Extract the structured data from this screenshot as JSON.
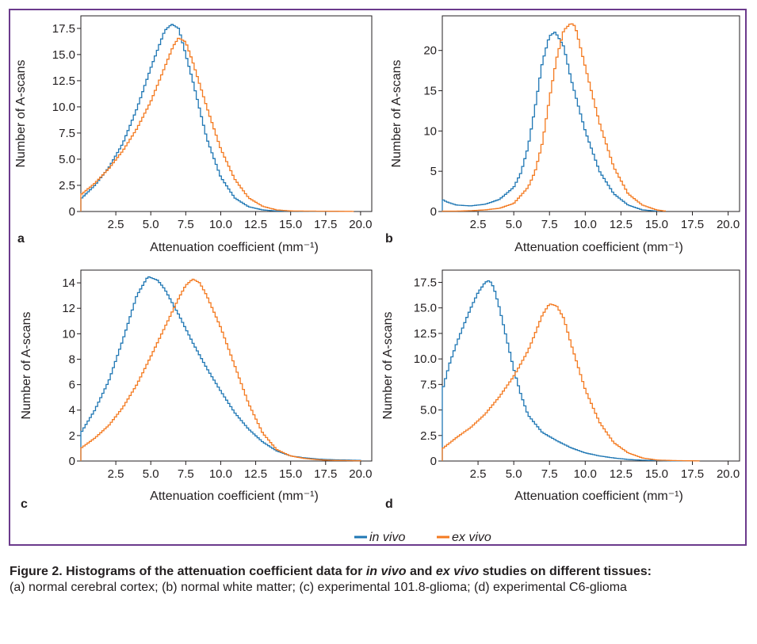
{
  "colors": {
    "in_vivo": "#1f77b4",
    "ex_vivo": "#f47a20",
    "frame": "#6b3a8c",
    "axis": "#231f20"
  },
  "legend": {
    "in_vivo": "in vivo",
    "ex_vivo": "ex vivo",
    "placement": "bottom-center"
  },
  "caption": {
    "title_parts": [
      {
        "text": "Figure 2. Histograms of the attenuation coefficient data for ",
        "italic": false
      },
      {
        "text": "in vivo",
        "italic": true
      },
      {
        "text": " and ",
        "italic": false
      },
      {
        "text": "ex vivo",
        "italic": true
      },
      {
        "text": " studies on different tissues:",
        "italic": false
      }
    ],
    "body": "(a) normal cerebral cortex; (b) normal white matter; (c) experimental 101.8-glioma; (d) experimental C6-glioma"
  },
  "chart_data": [
    {
      "panel": "a",
      "type": "line",
      "step": true,
      "xlabel": "Attenuation coefficient (mm⁻¹)",
      "ylabel": "Number of A-scans",
      "xlim": [
        0,
        20.8
      ],
      "ylim": [
        0,
        18.7
      ],
      "xticks": [
        2.5,
        5.0,
        7.5,
        10.0,
        12.5,
        15.0,
        17.5,
        20.0
      ],
      "xticklabels": [
        "2.5",
        "5.0",
        "7.5",
        "10.0",
        "12.5",
        "15.0",
        "17.5",
        "20.0"
      ],
      "yticks": [
        0,
        2.5,
        5.0,
        7.5,
        10.0,
        12.5,
        15.0,
        17.5
      ],
      "yticklabels": [
        "0",
        "2.5",
        "5.0",
        "7.5",
        "10.0",
        "12.5",
        "15.0",
        "17.5"
      ],
      "series": [
        {
          "name": "in vivo",
          "x": [
            0,
            1,
            2,
            3,
            4,
            5,
            6,
            6.5,
            7,
            8,
            9,
            10,
            11,
            12,
            13,
            14,
            16,
            18.8
          ],
          "y": [
            1.2,
            2.5,
            4.2,
            6.5,
            9.8,
            13.7,
            17.3,
            17.9,
            17.5,
            12.5,
            7.0,
            3.3,
            1.3,
            0.45,
            0.15,
            0.05,
            0.02,
            0.01
          ]
        },
        {
          "name": "ex vivo",
          "x": [
            0,
            1,
            2,
            3,
            4,
            5,
            6,
            6.6,
            7,
            7.5,
            8,
            9,
            10,
            11,
            12,
            13,
            14,
            15,
            19.5
          ],
          "y": [
            1.6,
            2.7,
            4.1,
            5.8,
            7.9,
            10.5,
            13.8,
            15.8,
            16.6,
            16.2,
            14.3,
            10.0,
            6.0,
            3.1,
            1.3,
            0.5,
            0.15,
            0.05,
            0.01
          ]
        }
      ]
    },
    {
      "panel": "b",
      "type": "line",
      "step": true,
      "xlabel": "Attenuation coefficient (mm⁻¹)",
      "ylabel": "Number of A-scans",
      "xlim": [
        0,
        20.8
      ],
      "ylim": [
        0,
        24.3
      ],
      "xticks": [
        2.5,
        5.0,
        7.5,
        10.0,
        12.5,
        15.0,
        17.5,
        20.0
      ],
      "xticklabels": [
        "2.5",
        "5.0",
        "7.5",
        "10.0",
        "12.5",
        "15.0",
        "17.5",
        "20.0"
      ],
      "yticks": [
        0,
        5,
        10,
        15,
        20
      ],
      "yticklabels": [
        "0",
        "5",
        "10",
        "15",
        "20"
      ],
      "series": [
        {
          "name": "in vivo",
          "x": [
            0,
            0.3,
            1,
            2,
            3,
            4,
            5,
            5.5,
            6,
            6.5,
            7,
            7.5,
            7.9,
            8.5,
            9,
            10,
            11,
            12,
            13,
            14,
            15
          ],
          "y": [
            1.5,
            1.2,
            0.8,
            0.7,
            0.9,
            1.5,
            3.0,
            4.8,
            8.0,
            13.0,
            18.5,
            21.8,
            22.3,
            20.5,
            16.5,
            10.0,
            5.0,
            2.2,
            0.8,
            0.2,
            0.05
          ]
        },
        {
          "name": "ex vivo",
          "x": [
            0,
            1,
            2,
            3,
            4,
            5,
            6,
            6.5,
            7,
            7.5,
            8,
            8.5,
            9,
            9.3,
            10,
            11,
            12,
            13,
            14,
            15,
            15.6
          ],
          "y": [
            0.05,
            0.05,
            0.1,
            0.2,
            0.4,
            1.0,
            3.0,
            5.0,
            8.5,
            14.0,
            19.0,
            22.5,
            23.4,
            23.0,
            18.0,
            11.0,
            5.5,
            2.2,
            0.8,
            0.2,
            0.05
          ]
        }
      ]
    },
    {
      "panel": "c",
      "type": "line",
      "step": true,
      "xlabel": "Attenuation coefficient (mm⁻¹)",
      "ylabel": "Number of A-scans",
      "xlim": [
        0,
        20.8
      ],
      "ylim": [
        0,
        15.0
      ],
      "xticks": [
        2.5,
        5.0,
        7.5,
        10.0,
        12.5,
        15.0,
        17.5,
        20.0
      ],
      "xticklabels": [
        "2.5",
        "5.0",
        "7.5",
        "10.0",
        "12.5",
        "15.0",
        "17.5",
        "20.0"
      ],
      "yticks": [
        0,
        2,
        4,
        6,
        8,
        10,
        12,
        14
      ],
      "yticklabels": [
        "0",
        "2",
        "4",
        "6",
        "8",
        "10",
        "12",
        "14"
      ],
      "series": [
        {
          "name": "in vivo",
          "x": [
            0,
            1,
            2,
            3,
            4,
            4.8,
            5.5,
            6,
            7,
            8,
            9,
            10,
            11,
            12,
            13,
            14,
            15,
            16,
            17,
            18,
            20
          ],
          "y": [
            2.2,
            4.0,
            6.3,
            9.5,
            13.0,
            14.5,
            14.2,
            13.5,
            11.5,
            9.3,
            7.3,
            5.5,
            3.8,
            2.5,
            1.5,
            0.8,
            0.4,
            0.25,
            0.15,
            0.1,
            0.05
          ]
        },
        {
          "name": "ex vivo",
          "x": [
            0,
            1,
            2,
            3,
            4,
            5,
            6,
            7,
            7.5,
            8,
            8.5,
            9,
            10,
            11,
            12,
            13,
            14,
            15,
            16,
            17,
            18,
            20
          ],
          "y": [
            1.0,
            1.8,
            2.8,
            4.2,
            6.0,
            8.2,
            10.5,
            12.8,
            13.8,
            14.3,
            14.0,
            13.0,
            10.5,
            7.5,
            4.5,
            2.2,
            0.9,
            0.4,
            0.2,
            0.1,
            0.05,
            0.02
          ]
        }
      ]
    },
    {
      "panel": "d",
      "type": "line",
      "step": true,
      "xlabel": "Attenuation coefficient (mm⁻¹)",
      "ylabel": "Number of A-scans",
      "xlim": [
        0,
        20.8
      ],
      "ylim": [
        0,
        18.7
      ],
      "xticks": [
        2.5,
        5.0,
        7.5,
        10.0,
        12.5,
        15.0,
        17.5,
        20.0
      ],
      "xticklabels": [
        "2.5",
        "5.0",
        "7.5",
        "10.0",
        "12.5",
        "15.0",
        "17.5",
        "20.0"
      ],
      "yticks": [
        0,
        2.5,
        5.0,
        7.5,
        10.0,
        12.5,
        15.0,
        17.5
      ],
      "yticklabels": [
        "0",
        "2.5",
        "5.0",
        "7.5",
        "10.0",
        "12.5",
        "15.0",
        "17.5"
      ],
      "series": [
        {
          "name": "in vivo",
          "x": [
            0,
            0.02,
            0.5,
            1,
            1.5,
            2,
            2.5,
            3,
            3.3,
            3.6,
            4,
            4.5,
            5,
            5.5,
            6,
            7,
            8,
            9,
            10,
            11,
            12,
            13,
            14,
            16,
            18
          ],
          "y": [
            0,
            7.0,
            9.5,
            11.5,
            13.3,
            15.0,
            16.5,
            17.5,
            17.7,
            17.0,
            15.0,
            12.0,
            9.0,
            6.5,
            4.5,
            2.8,
            2.0,
            1.3,
            0.8,
            0.5,
            0.3,
            0.15,
            0.08,
            0.02,
            0.01
          ]
        },
        {
          "name": "ex vivo",
          "x": [
            0,
            1,
            2,
            3,
            4,
            5,
            6,
            6.5,
            7,
            7.5,
            8,
            8.5,
            9,
            10,
            11,
            12,
            13,
            14,
            15,
            16,
            18
          ],
          "y": [
            1.2,
            2.3,
            3.3,
            4.6,
            6.3,
            8.3,
            10.8,
            12.5,
            14.3,
            15.4,
            15.2,
            14.0,
            11.5,
            7.0,
            3.8,
            1.8,
            0.8,
            0.3,
            0.1,
            0.05,
            0.01
          ]
        }
      ]
    }
  ]
}
